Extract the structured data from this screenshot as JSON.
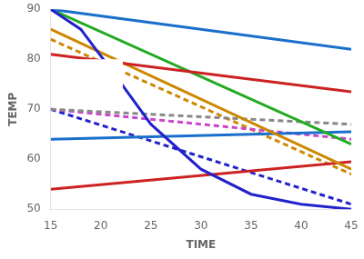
{
  "chart_data": {
    "type": "line",
    "xlabel": "TIME",
    "ylabel": "TEMP",
    "xlim": [
      15,
      45
    ],
    "ylim": [
      50,
      90
    ],
    "xticks": [
      15,
      20,
      25,
      30,
      35,
      40,
      45
    ],
    "yticks": [
      50,
      60,
      70,
      80,
      90
    ],
    "grid": false,
    "series": [
      {
        "color": "#2222cc",
        "line_style": "solid",
        "x": [
          15,
          18,
          21,
          25,
          30,
          35,
          40,
          45
        ],
        "values": [
          90,
          86,
          78,
          67,
          58,
          53,
          51,
          50
        ]
      },
      {
        "color": "#1a6fcc",
        "line_style": "solid",
        "x": [
          15,
          45
        ],
        "values": [
          90,
          82
        ]
      },
      {
        "color": "#cc2222",
        "line_style": "solid",
        "x": [
          15,
          45
        ],
        "values": [
          81,
          73.5
        ]
      },
      {
        "color": "#22aa22",
        "line_style": "solid",
        "x": [
          15,
          45
        ],
        "values": [
          90,
          63
        ]
      },
      {
        "color": "#cc8800",
        "line_style": "solid",
        "x": [
          15,
          45
        ],
        "values": [
          86,
          58
        ]
      },
      {
        "color": "#1a6fcc",
        "line_style": "solid",
        "x": [
          15,
          45
        ],
        "values": [
          64,
          65.5
        ]
      },
      {
        "color": "#cc2222",
        "line_style": "solid",
        "x": [
          15,
          45
        ],
        "values": [
          54,
          59.5
        ]
      },
      {
        "color": "#888888",
        "line_style": "dashed",
        "x": [
          15,
          45
        ],
        "values": [
          70,
          67.0
        ]
      },
      {
        "color": "#cc44cc",
        "line_style": "dashed",
        "x": [
          15,
          45
        ],
        "values": [
          70,
          64.0
        ]
      },
      {
        "color": "#cc8800",
        "line_style": "dashed",
        "x": [
          15,
          45
        ],
        "values": [
          84,
          57
        ]
      },
      {
        "color": "#2222cc",
        "line_style": "dashed",
        "x": [
          15,
          45
        ],
        "values": [
          70,
          51
        ]
      },
      {
        "type": "rect",
        "color": "#ffffff",
        "x": [
          17,
          22.2
        ],
        "values": [
          70.5,
          80
        ]
      }
    ]
  }
}
